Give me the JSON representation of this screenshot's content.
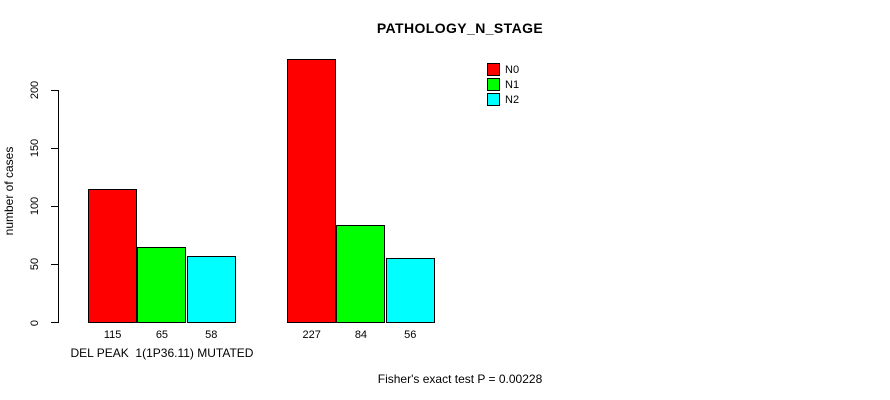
{
  "chart_data": {
    "type": "bar",
    "title": "PATHOLOGY_N_STAGE",
    "ylabel": "number of cases",
    "xlabel": "",
    "categories": [
      "DEL PEAK  1(1P36.11) MUTATED",
      ""
    ],
    "series": [
      {
        "name": "N0",
        "color": "#ff0000",
        "values": [
          115,
          227
        ]
      },
      {
        "name": "N1",
        "color": "#00ff00",
        "values": [
          65,
          84
        ]
      },
      {
        "name": "N2",
        "color": "#00ffff",
        "values": [
          58,
          56
        ]
      }
    ],
    "bar_value_labels": [
      [
        115,
        65,
        58
      ],
      [
        227,
        84,
        56
      ]
    ],
    "yticks": [
      0,
      50,
      100,
      150,
      200
    ],
    "ylim": [
      0,
      230
    ],
    "grid": false,
    "legend_position": "top-right-inside",
    "annotation": "Fisher's exact test P = 0.00228"
  }
}
